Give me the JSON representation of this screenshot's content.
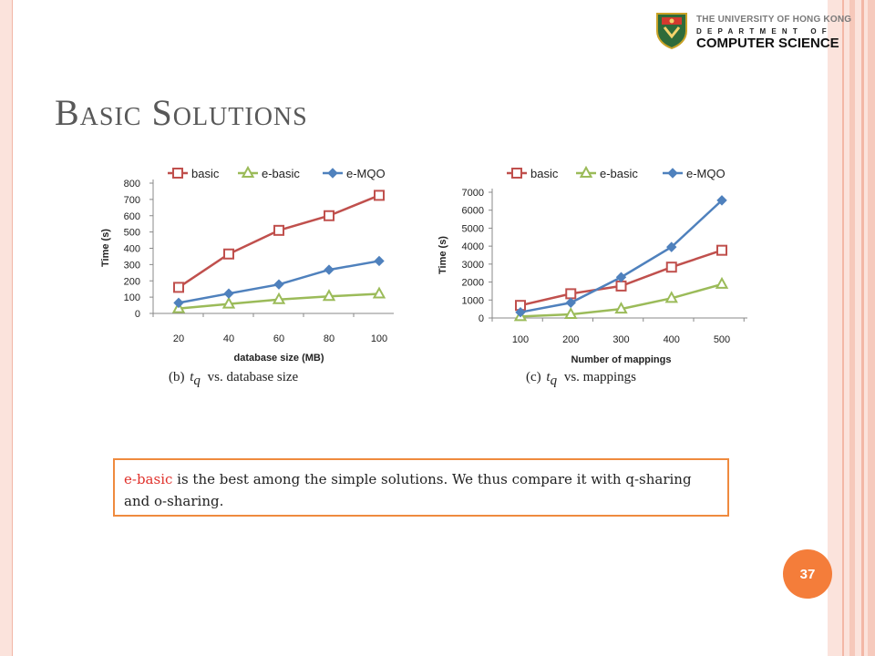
{
  "header": {
    "university": "THE UNIVERSITY OF HONG KONG",
    "department_line": "DEPARTMENT OF",
    "department": "COMPUTER SCIENCE",
    "logo_icon": "hku-crest-icon"
  },
  "slide": {
    "title": "Basic Solutions",
    "page_number": "37"
  },
  "note": {
    "highlight": "e-basic",
    "text": " is the best among the simple solutions. We thus compare it with q-sharing and o-sharing."
  },
  "colors": {
    "basic": "#c0504d",
    "e_basic": "#9bbb59",
    "e_mqo": "#4f81bd",
    "note_border": "#ef8a3e",
    "badge": "#f47d3a"
  },
  "chart_data": [
    {
      "type": "line",
      "caption_prefix": "(b)",
      "caption_math": "t",
      "caption_sub": "q",
      "caption_suffix": "vs. database size",
      "xlabel": "database size (MB)",
      "ylabel": "Time (s)",
      "categories": [
        "20",
        "40",
        "60",
        "80",
        "100"
      ],
      "yticks": [
        0,
        100,
        200,
        300,
        400,
        500,
        600,
        700,
        800
      ],
      "ylim": [
        0,
        800
      ],
      "legend_position": "top",
      "series": [
        {
          "name": "basic",
          "marker": "square",
          "values": [
            160,
            365,
            510,
            600,
            725
          ]
        },
        {
          "name": "e-basic",
          "marker": "triangle",
          "values": [
            30,
            58,
            85,
            105,
            120
          ]
        },
        {
          "name": "e-MQO",
          "marker": "diamond",
          "values": [
            65,
            122,
            178,
            268,
            322
          ]
        }
      ]
    },
    {
      "type": "line",
      "caption_prefix": "(c)",
      "caption_math": "t",
      "caption_sub": "q",
      "caption_suffix": "vs. mappings",
      "xlabel": "Number of mappings",
      "ylabel": "Time (s)",
      "categories": [
        "100",
        "200",
        "300",
        "400",
        "500"
      ],
      "yticks": [
        0,
        1000,
        2000,
        3000,
        4000,
        5000,
        6000,
        7000
      ],
      "ylim": [
        0,
        7000
      ],
      "legend_position": "top",
      "series": [
        {
          "name": "basic",
          "marker": "square",
          "values": [
            700,
            1350,
            1780,
            2830,
            3770
          ]
        },
        {
          "name": "e-basic",
          "marker": "triangle",
          "values": [
            80,
            200,
            500,
            1100,
            1880
          ]
        },
        {
          "name": "e-MQO",
          "marker": "diamond",
          "values": [
            320,
            850,
            2270,
            3950,
            6550
          ]
        }
      ]
    }
  ]
}
